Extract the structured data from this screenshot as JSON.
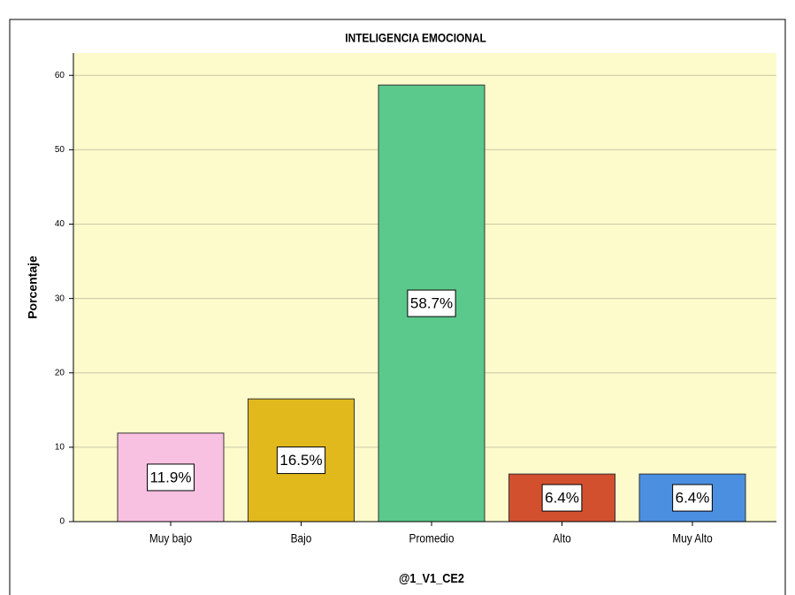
{
  "chart_data": {
    "type": "bar",
    "title": "INTELIGENCIA EMOCIONAL",
    "x_label": "@1_V1_CE2",
    "y_label": "Porcentaje",
    "categories": [
      "Muy bajo",
      "Bajo",
      "Promedio",
      "Alto",
      "Muy Alto"
    ],
    "values": [
      11.9,
      16.5,
      58.7,
      6.4,
      6.4
    ],
    "value_labels": [
      "11.9%",
      "16.5%",
      "58.7%",
      "6.4%",
      "6.4%"
    ],
    "colors": [
      "#f9c1e1",
      "#e1b91d",
      "#5bc98b",
      "#d3502f",
      "#4b8fe0"
    ],
    "ylim": [
      0,
      63
    ],
    "yticks": [
      0,
      10,
      20,
      30,
      40,
      50,
      60
    ],
    "grid": true
  }
}
